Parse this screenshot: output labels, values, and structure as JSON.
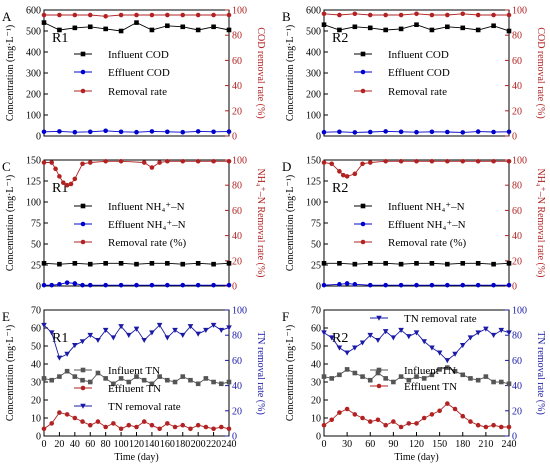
{
  "chart_data": [
    {
      "panel_label": "A",
      "reactor": "R1",
      "type": "line",
      "xlim": [
        0,
        240
      ],
      "ylim": [
        0,
        600
      ],
      "y2lim": [
        0,
        100
      ],
      "xticks": [],
      "yticks": [
        0,
        100,
        200,
        300,
        400,
        500,
        600
      ],
      "y2ticks": [
        0,
        20,
        40,
        60,
        80,
        100
      ],
      "xlabel": "",
      "ylabel": "Concentration (mg·L⁻¹)",
      "y2label": "COD removal rate (%)",
      "y2color": "#b22222",
      "legend_position": "center-left",
      "series": [
        {
          "name": "Influent COD",
          "axis": "left",
          "color": "#000000",
          "marker": "square",
          "x": [
            0,
            20,
            40,
            60,
            80,
            100,
            120,
            140,
            160,
            180,
            200,
            220,
            240
          ],
          "y": [
            540,
            505,
            515,
            520,
            510,
            500,
            540,
            505,
            525,
            520,
            505,
            520,
            505
          ]
        },
        {
          "name": "Effluent COD",
          "axis": "left",
          "color": "#0000cc",
          "marker": "circle",
          "x": [
            0,
            20,
            40,
            60,
            80,
            100,
            120,
            140,
            160,
            180,
            200,
            220,
            240
          ],
          "y": [
            20,
            22,
            18,
            20,
            25,
            20,
            18,
            22,
            20,
            18,
            22,
            20,
            21
          ]
        },
        {
          "name": "Removal rate",
          "axis": "right",
          "color": "#b22222",
          "marker": "circle",
          "x": [
            0,
            20,
            40,
            60,
            80,
            100,
            120,
            140,
            160,
            180,
            200,
            220,
            240
          ],
          "y": [
            96,
            96,
            96,
            96,
            95,
            96,
            96,
            96,
            96,
            96,
            96,
            96,
            96
          ]
        }
      ]
    },
    {
      "panel_label": "B",
      "reactor": "R2",
      "type": "line",
      "xlim": [
        0,
        240
      ],
      "ylim": [
        0,
        600
      ],
      "y2lim": [
        0,
        100
      ],
      "xticks": [],
      "yticks": [
        0,
        100,
        200,
        300,
        400,
        500,
        600
      ],
      "y2ticks": [
        0,
        20,
        40,
        60,
        80,
        100
      ],
      "xlabel": "",
      "ylabel": "Concentration (mg·L⁻¹)",
      "y2label": "COD removal rate (%)",
      "y2color": "#b22222",
      "legend_position": "center-left",
      "series": [
        {
          "name": "Influent COD",
          "axis": "left",
          "color": "#000000",
          "marker": "square",
          "x": [
            0,
            20,
            40,
            60,
            80,
            100,
            120,
            140,
            160,
            180,
            200,
            220,
            240
          ],
          "y": [
            530,
            505,
            520,
            515,
            505,
            510,
            530,
            505,
            520,
            515,
            505,
            525,
            500
          ]
        },
        {
          "name": "Effluent COD",
          "axis": "left",
          "color": "#0000cc",
          "marker": "circle",
          "x": [
            0,
            20,
            40,
            60,
            80,
            100,
            120,
            140,
            160,
            180,
            200,
            220,
            240
          ],
          "y": [
            18,
            20,
            17,
            19,
            22,
            20,
            18,
            20,
            19,
            17,
            21,
            19,
            20
          ]
        },
        {
          "name": "Removal rate",
          "axis": "right",
          "color": "#b22222",
          "marker": "circle",
          "x": [
            0,
            20,
            40,
            60,
            80,
            100,
            120,
            140,
            160,
            180,
            200,
            220,
            240
          ],
          "y": [
            97,
            96,
            97,
            96,
            96,
            96,
            97,
            96,
            96,
            97,
            96,
            96,
            96
          ]
        }
      ]
    },
    {
      "panel_label": "C",
      "reactor": "R1",
      "type": "line",
      "xlim": [
        0,
        240
      ],
      "ylim": [
        0,
        150
      ],
      "y2lim": [
        0,
        100
      ],
      "xticks": [],
      "yticks": [
        0,
        25,
        50,
        75,
        100,
        125,
        150
      ],
      "y2ticks": [
        0,
        20,
        40,
        60,
        80,
        100
      ],
      "xlabel": "",
      "ylabel": "Concentration (mg·L⁻¹)",
      "y2label": "NH₄⁺–N Removal rate (%)",
      "y2color": "#b22222",
      "legend_position": "center-left",
      "series": [
        {
          "name": "Influent NH₄⁺–N",
          "axis": "left",
          "color": "#000000",
          "marker": "square",
          "x": [
            0,
            20,
            40,
            60,
            80,
            100,
            120,
            140,
            160,
            180,
            200,
            220,
            240
          ],
          "y": [
            27,
            26,
            27,
            26,
            27,
            27,
            26,
            27,
            27,
            26,
            27,
            26,
            27
          ]
        },
        {
          "name": "Effluent NH₄⁺–N",
          "axis": "left",
          "color": "#0000cc",
          "marker": "circle",
          "x": [
            0,
            10,
            20,
            30,
            40,
            50,
            60,
            80,
            100,
            120,
            140,
            160,
            180,
            200,
            220,
            240
          ],
          "y": [
            1,
            1,
            2,
            4,
            3,
            1,
            1,
            1,
            1,
            1,
            1,
            1,
            1,
            1,
            1,
            1
          ]
        },
        {
          "name": "Removal rate (%)",
          "axis": "right",
          "color": "#b22222",
          "marker": "circle",
          "x": [
            0,
            10,
            15,
            20,
            25,
            30,
            35,
            40,
            50,
            60,
            80,
            100,
            130,
            140,
            150,
            160,
            180,
            200,
            220,
            240
          ],
          "y": [
            98,
            98,
            93,
            87,
            82,
            80,
            81,
            85,
            97,
            98,
            99,
            99,
            98,
            94,
            98,
            99,
            99,
            99,
            99,
            99
          ]
        }
      ]
    },
    {
      "panel_label": "D",
      "reactor": "R2",
      "type": "line",
      "xlim": [
        0,
        240
      ],
      "ylim": [
        0,
        150
      ],
      "y2lim": [
        0,
        100
      ],
      "xticks": [],
      "yticks": [
        0,
        25,
        50,
        75,
        100,
        125,
        150
      ],
      "y2ticks": [
        0,
        20,
        40,
        60,
        80,
        100
      ],
      "xlabel": "",
      "ylabel": "Concentration (mg·L⁻¹)",
      "y2label": "NH₄⁺–N Removal rate (%)",
      "y2color": "#b22222",
      "legend_position": "center-left",
      "series": [
        {
          "name": "Influent NH₄⁺–N",
          "axis": "left",
          "color": "#000000",
          "marker": "square",
          "x": [
            0,
            20,
            40,
            60,
            80,
            100,
            120,
            140,
            160,
            180,
            200,
            220,
            240
          ],
          "y": [
            27,
            27,
            26,
            27,
            27,
            26,
            27,
            27,
            26,
            27,
            27,
            26,
            27
          ]
        },
        {
          "name": "Effluent NH₄⁺–N",
          "axis": "left",
          "color": "#0000cc",
          "marker": "circle",
          "x": [
            0,
            20,
            30,
            40,
            60,
            80,
            100,
            120,
            140,
            160,
            180,
            200,
            220,
            240
          ],
          "y": [
            1,
            2,
            3,
            2,
            1,
            1,
            1,
            1,
            1,
            1,
            1,
            1,
            1,
            1
          ]
        },
        {
          "name": "Removal rate (%)",
          "axis": "right",
          "color": "#b22222",
          "marker": "circle",
          "x": [
            0,
            10,
            20,
            25,
            30,
            40,
            50,
            60,
            80,
            100,
            120,
            140,
            160,
            180,
            200,
            220,
            240
          ],
          "y": [
            98,
            97,
            91,
            88,
            87,
            89,
            97,
            98,
            99,
            99,
            99,
            99,
            99,
            99,
            99,
            99,
            99
          ]
        }
      ]
    },
    {
      "panel_label": "E",
      "reactor": "R1",
      "type": "line",
      "xlim": [
        0,
        240
      ],
      "ylim": [
        0,
        70
      ],
      "y2lim": [
        0,
        100
      ],
      "xticks": [
        0,
        20,
        40,
        60,
        80,
        100,
        120,
        140,
        160,
        180,
        200,
        220,
        240
      ],
      "yticks": [
        0,
        10,
        20,
        30,
        40,
        50,
        60,
        70
      ],
      "y2ticks": [
        0,
        20,
        40,
        60,
        80,
        100
      ],
      "xlabel": "Time (day)",
      "ylabel": "Concentration (mg·L⁻¹)",
      "y2label": "TN removal rate (%)",
      "y2color": "#1a1aa6",
      "legend_position": "center-left",
      "series": [
        {
          "name": "Influent TN",
          "axis": "left",
          "color": "#555555",
          "marker": "square",
          "x": [
            0,
            10,
            20,
            30,
            40,
            50,
            60,
            70,
            80,
            90,
            100,
            110,
            120,
            130,
            140,
            150,
            160,
            170,
            180,
            190,
            200,
            210,
            220,
            230,
            240
          ],
          "y": [
            32,
            31,
            33,
            36,
            33,
            31,
            30,
            35,
            32,
            29,
            32,
            30,
            33,
            31,
            29,
            33,
            31,
            30,
            33,
            31,
            29,
            32,
            30,
            29,
            30
          ]
        },
        {
          "name": "Effluent TN",
          "axis": "left",
          "color": "#b22222",
          "marker": "circle",
          "x": [
            0,
            10,
            20,
            30,
            40,
            50,
            60,
            70,
            80,
            90,
            100,
            110,
            120,
            130,
            140,
            150,
            160,
            170,
            180,
            190,
            200,
            210,
            220,
            230,
            240
          ],
          "y": [
            4,
            7,
            13,
            12,
            10,
            8,
            6,
            8,
            5,
            7,
            4,
            6,
            5,
            8,
            6,
            4,
            7,
            5,
            6,
            4,
            6,
            5,
            4,
            5,
            4
          ]
        },
        {
          "name": "TN removal rate",
          "axis": "right",
          "color": "#1a1aa6",
          "marker": "triangle",
          "x": [
            0,
            10,
            20,
            30,
            40,
            50,
            60,
            70,
            80,
            90,
            100,
            110,
            120,
            130,
            140,
            150,
            160,
            170,
            180,
            190,
            200,
            210,
            220,
            230,
            240
          ],
          "y": [
            88,
            82,
            62,
            65,
            72,
            75,
            80,
            76,
            84,
            78,
            87,
            80,
            85,
            76,
            82,
            88,
            78,
            84,
            80,
            87,
            81,
            84,
            88,
            84,
            86
          ]
        }
      ]
    },
    {
      "panel_label": "F",
      "reactor": "R2",
      "type": "line",
      "xlim": [
        0,
        240
      ],
      "ylim": [
        0,
        70
      ],
      "y2lim": [
        0,
        100
      ],
      "xticks": [
        0,
        30,
        60,
        90,
        120,
        150,
        180,
        210,
        240
      ],
      "yticks": [
        0,
        10,
        20,
        30,
        40,
        50,
        60,
        70
      ],
      "y2ticks": [
        0,
        20,
        40,
        60,
        80,
        100
      ],
      "xlabel": "Time (day)",
      "ylabel": "Concentration (mg·L⁻¹)",
      "y2label": "TN removal rate (%)",
      "y2color": "#1a1aa6",
      "legend_position": "center",
      "series": [
        {
          "name": "TN removal rate",
          "axis": "right",
          "color": "#1a1aa6",
          "marker": "triangle",
          "x": [
            0,
            10,
            20,
            30,
            40,
            50,
            60,
            70,
            80,
            90,
            100,
            110,
            120,
            130,
            140,
            150,
            160,
            170,
            180,
            190,
            200,
            210,
            220,
            230,
            240
          ],
          "y": [
            82,
            78,
            70,
            66,
            70,
            74,
            80,
            76,
            83,
            78,
            84,
            79,
            82,
            75,
            70,
            66,
            60,
            65,
            72,
            78,
            82,
            85,
            80,
            84,
            82
          ]
        },
        {
          "name": "Influent TN",
          "axis": "left",
          "color": "#555555",
          "marker": "square",
          "x": [
            0,
            10,
            20,
            30,
            40,
            50,
            60,
            70,
            80,
            90,
            100,
            110,
            120,
            130,
            140,
            150,
            160,
            170,
            180,
            190,
            200,
            210,
            220,
            230,
            240
          ],
          "y": [
            33,
            32,
            34,
            37,
            35,
            33,
            31,
            35,
            32,
            30,
            33,
            31,
            33,
            32,
            34,
            37,
            38,
            36,
            34,
            32,
            31,
            33,
            30,
            30,
            29
          ]
        },
        {
          "name": "Effluent TN",
          "axis": "left",
          "color": "#b22222",
          "marker": "circle",
          "x": [
            0,
            10,
            20,
            30,
            40,
            50,
            60,
            70,
            80,
            90,
            100,
            110,
            120,
            130,
            140,
            150,
            160,
            170,
            180,
            190,
            200,
            210,
            220,
            230,
            240
          ],
          "y": [
            6,
            9,
            13,
            15,
            12,
            10,
            8,
            9,
            6,
            8,
            5,
            7,
            7,
            10,
            12,
            14,
            18,
            15,
            11,
            8,
            6,
            5,
            6,
            5,
            5
          ]
        }
      ]
    }
  ]
}
